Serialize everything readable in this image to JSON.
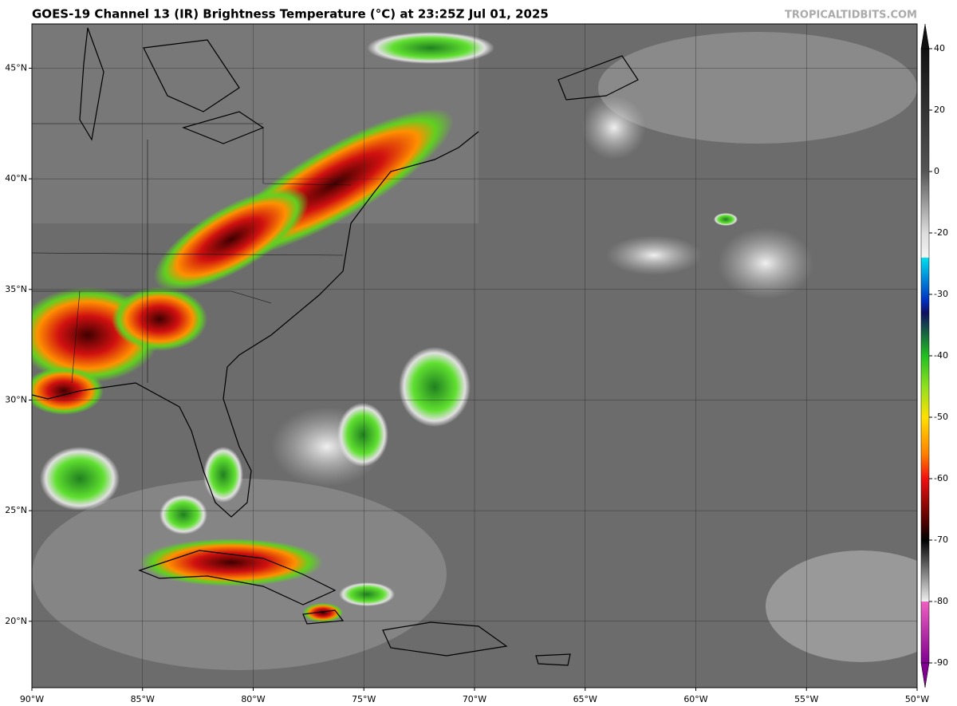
{
  "header": {
    "title": "GOES-19 Channel 13 (IR) Brightness Temperature (°C) at 23:25Z Jul 01, 2025",
    "credit": "TROPICALTIDBITS.COM"
  },
  "map": {
    "lon_range": [
      -90,
      -50
    ],
    "lat_range": [
      17,
      47
    ],
    "lon_ticks": [
      {
        "value": -90,
        "label": "90°W"
      },
      {
        "value": -85,
        "label": "85°W"
      },
      {
        "value": -80,
        "label": "80°W"
      },
      {
        "value": -75,
        "label": "75°W"
      },
      {
        "value": -70,
        "label": "70°W"
      },
      {
        "value": -65,
        "label": "65°W"
      },
      {
        "value": -60,
        "label": "60°W"
      },
      {
        "value": -55,
        "label": "55°W"
      },
      {
        "value": -50,
        "label": "50°W"
      }
    ],
    "lat_ticks": [
      {
        "value": 20,
        "label": "20°N"
      },
      {
        "value": 25,
        "label": "25°N"
      },
      {
        "value": 30,
        "label": "30°N"
      },
      {
        "value": 35,
        "label": "35°N"
      },
      {
        "value": 40,
        "label": "40°N"
      },
      {
        "value": 45,
        "label": "45°N"
      }
    ]
  },
  "colorbar": {
    "ticks": [
      40,
      20,
      0,
      -20,
      -30,
      -40,
      -50,
      -60,
      -70,
      -80,
      -90
    ]
  }
}
